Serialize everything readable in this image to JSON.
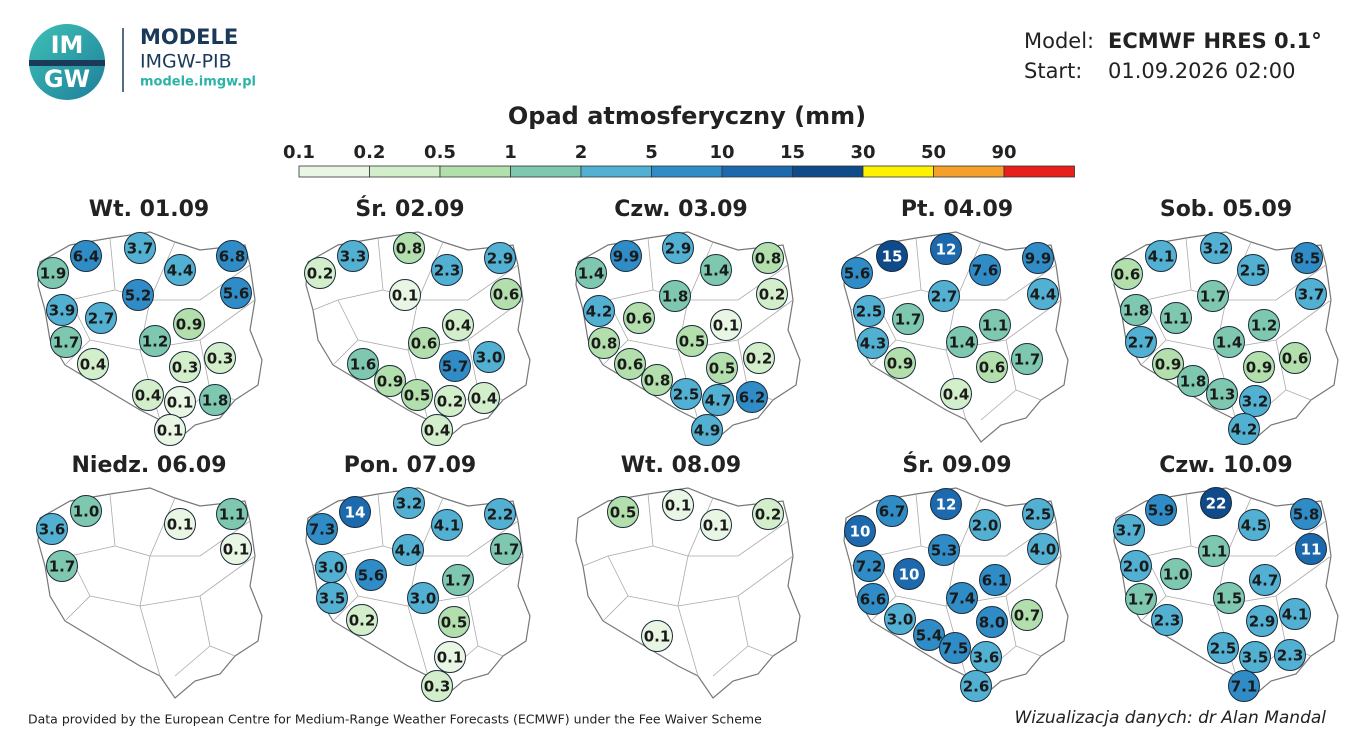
{
  "header": {
    "logo_top": "IM",
    "logo_bottom": "GW",
    "brand": "MODELE",
    "org": "IMGW-PIB",
    "url": "modele.imgw.pl",
    "model_label": "Model:",
    "model": "ECMWF HRES 0.1°",
    "start_label": "Start:",
    "start": "01.09.2026 02:00"
  },
  "legend": {
    "title": "Opad atmosferyczny (mm)",
    "ticks": [
      0.1,
      0.2,
      0.5,
      1,
      2,
      5,
      10,
      15,
      30,
      50,
      90
    ],
    "colors": [
      "#eaf6e4",
      "#d3eecb",
      "#b2dfac",
      "#7fc8b0",
      "#52b0d2",
      "#2f8cc6",
      "#1c69ad",
      "#0f4a8a",
      "#fff200",
      "#f5a02a",
      "#e8201c"
    ]
  },
  "panels": [
    {
      "title": "Wt. 01.09",
      "values": [
        6.4,
        3.7,
        4.4,
        6.8,
        1.9,
        5.6,
        5.2,
        3.9,
        2.7,
        0.9,
        1.2,
        1.7,
        0.4,
        0.3,
        0.3,
        0.4,
        0.1,
        1.8,
        0.1
      ]
    },
    {
      "title": "Śr. 02.09",
      "values": [
        3.3,
        0.8,
        2.3,
        2.9,
        0.2,
        0.6,
        0.1,
        0.4,
        0.6,
        1.6,
        5.7,
        3,
        0.9,
        0.5,
        0.2,
        0.4,
        0.4
      ],
      "value_labels": [
        "3.3",
        "0.8",
        "2.3",
        "2.9",
        "0.2",
        "0.6",
        "0.1",
        "0.4",
        "0.6",
        "1.6",
        "5.7",
        "3.0",
        "0.9",
        "0.5",
        "0.2",
        "0.4",
        "0.4"
      ]
    },
    {
      "title": "Czw. 03.09",
      "values": [
        9.9,
        2.9,
        1.4,
        0.8,
        1.4,
        0.2,
        1.8,
        4.2,
        0.6,
        0.1,
        0.8,
        0.5,
        0.6,
        0.5,
        0.2,
        0.8,
        2.5,
        4.7,
        6.2,
        4.9
      ]
    },
    {
      "title": "Pt. 04.09",
      "values": [
        15,
        12,
        7.6,
        9.9,
        5.6,
        4.4,
        2.7,
        2.5,
        1.7,
        1.1,
        4.3,
        1.4,
        0.9,
        0.6,
        1.7,
        0.4
      ]
    },
    {
      "title": "Sob. 05.09",
      "values": [
        4.1,
        3.2,
        2.5,
        8.5,
        0.6,
        3.7,
        1.7,
        1.8,
        1.1,
        1.2,
        2.7,
        1.4,
        0.9,
        0.9,
        0.6,
        1.8,
        1.3,
        3.2,
        4.2
      ]
    },
    {
      "title": "Niedz. 06.09",
      "values": [
        1,
        0.1,
        1.1,
        3.6,
        0.1,
        1.7
      ],
      "value_labels": [
        "1.0",
        "0.1",
        "1.1",
        "3.6",
        "0.1",
        "1.7"
      ]
    },
    {
      "title": "Pon. 07.09",
      "values": [
        14,
        3.2,
        4.1,
        2.2,
        7.3,
        1.7,
        4.4,
        3,
        5.6,
        1.7,
        3.5,
        3,
        0.2,
        0.5,
        0.1,
        0.3
      ],
      "value_labels": [
        "14",
        "3.2",
        "4.1",
        "2.2",
        "7.3",
        "1.7",
        "4.4",
        "3.0",
        "5.6",
        "1.7",
        "3.5",
        "3.0",
        "0.2",
        "0.5",
        "0.1",
        "0.3"
      ]
    },
    {
      "title": "Wt. 08.09",
      "values": [
        0.5,
        0.1,
        0.1,
        0.2,
        0.1
      ]
    },
    {
      "title": "Śr. 09.09",
      "values": [
        6.7,
        12,
        2,
        2.5,
        10,
        4,
        5.3,
        7.2,
        10,
        6.1,
        6.6,
        7.4,
        8,
        0.7,
        3,
        5.4,
        7.5,
        3.6,
        2.6
      ],
      "value_labels": [
        "6.7",
        "12",
        "2.0",
        "2.5",
        "10",
        "4.0",
        "5.3",
        "7.2",
        "10",
        "6.1",
        "6.6",
        "7.4",
        "8.0",
        "0.7",
        "3.0",
        "5.4",
        "7.5",
        "3.6",
        "2.6"
      ]
    },
    {
      "title": "Czw. 10.09",
      "values": [
        5.9,
        22,
        4.5,
        5.8,
        3.7,
        11,
        2,
        1,
        1.1,
        4.7,
        1.7,
        1.5,
        2.9,
        4.1,
        2.3,
        2.5,
        3.5,
        2.3,
        7.1
      ],
      "value_labels": [
        "5.9",
        "22",
        "4.5",
        "5.8",
        "3.7",
        "11",
        "2.0",
        "1.0",
        "1.1",
        "4.7",
        "1.7",
        "1.5",
        "2.9",
        "4.1",
        "2.3",
        "2.5",
        "3.5",
        "2.3",
        "7.1"
      ]
    }
  ],
  "footer": {
    "source": "Data provided by the European Centre for Medium-Range Weather Forecasts (ECMWF) under the Fee Waiver Scheme",
    "credit": "Wizualizacja danych: dr Alan Mandal"
  }
}
